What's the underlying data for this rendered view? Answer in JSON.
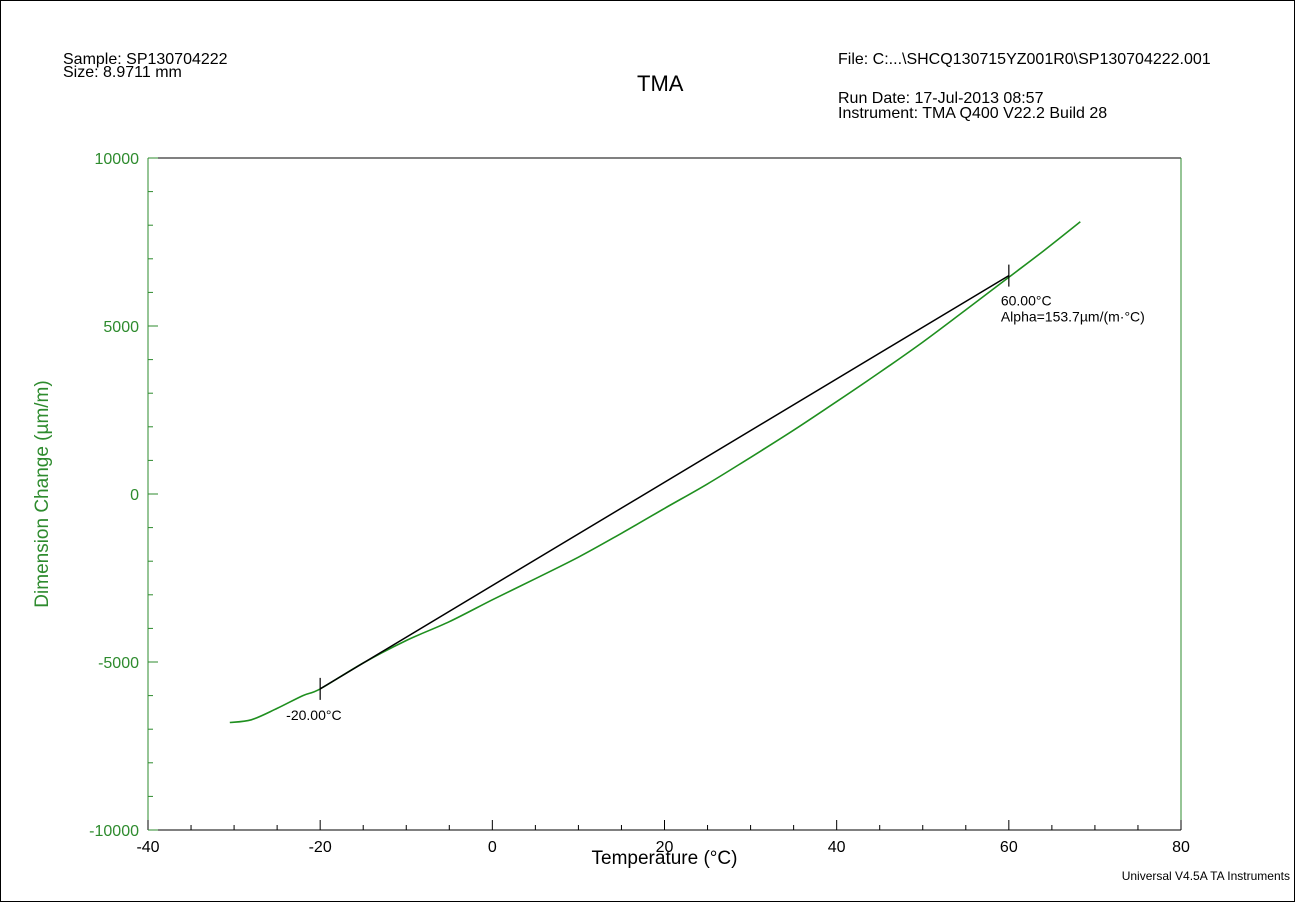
{
  "header": {
    "sample": "Sample: SP130704222",
    "size": "Size:  8.9711 mm",
    "title": "TMA",
    "file": "File: C:...\\SHCQ130715YZ001R0\\SP130704222.001",
    "run_date": "Run Date: 17-Jul-2013 08:57",
    "instrument": "Instrument: TMA Q400 V22.2 Build 28"
  },
  "footer": "Universal V4.5A TA Instruments",
  "colors": {
    "curve": "#1f8f1f",
    "axis_y": "#2e8b2e",
    "tangent": "#000000"
  },
  "chart_data": {
    "type": "line",
    "title": "TMA",
    "xlabel": "Temperature (°C)",
    "ylabel": "Dimension Change (µm/m)",
    "xlim": [
      -40,
      80
    ],
    "ylim": [
      -10000,
      10000
    ],
    "x_ticks": [
      -40,
      -20,
      0,
      20,
      40,
      60,
      80
    ],
    "y_ticks": [
      -10000,
      -5000,
      0,
      5000,
      10000
    ],
    "x_tick_labels": [
      "-40",
      "-20",
      "0",
      "20",
      "40",
      "60",
      "80"
    ],
    "y_tick_labels": [
      "-10000",
      "-5000",
      "0",
      "5000",
      "10000"
    ],
    "grid": false,
    "series": [
      {
        "x": [
          -30.5,
          -28,
          -25,
          -22,
          -20,
          -15,
          -10,
          -5,
          0,
          5,
          10,
          15,
          20,
          25,
          30,
          35,
          40,
          45,
          50,
          55,
          60,
          64,
          68.3
        ],
        "y": [
          -6800,
          -6720,
          -6380,
          -6000,
          -5800,
          -5030,
          -4360,
          -3800,
          -3150,
          -2520,
          -1880,
          -1170,
          -430,
          300,
          1090,
          1900,
          2750,
          3620,
          4520,
          5480,
          6450,
          7230,
          8100
        ]
      }
    ],
    "tangent": {
      "x": [
        -20,
        60
      ],
      "y": [
        -5800,
        6500
      ]
    },
    "annotations": [
      {
        "x": -20,
        "y": -5800,
        "lines": [
          "-20.00°C"
        ]
      },
      {
        "x": 60,
        "y": 6500,
        "lines": [
          "60.00°C",
          "Alpha=153.7µm/(m·°C)"
        ]
      }
    ]
  }
}
